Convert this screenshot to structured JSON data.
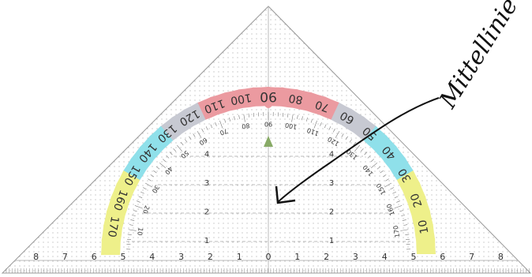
{
  "annotation": "Mittellinie",
  "outer_scale": [
    10,
    20,
    30,
    40,
    50,
    60,
    70,
    80,
    90,
    100,
    110,
    120,
    130,
    140,
    150,
    160,
    170
  ],
  "inner_scale": [
    170,
    160,
    150,
    140,
    130,
    120,
    110,
    100,
    90,
    80,
    70,
    60,
    50,
    40,
    30,
    20,
    10
  ],
  "bottom_ruler": [
    8,
    7,
    6,
    5,
    4,
    3,
    2,
    1,
    0,
    1,
    2,
    3,
    4,
    5,
    6,
    7,
    8
  ],
  "vertical_ruler": [
    1,
    2,
    3,
    4
  ]
}
